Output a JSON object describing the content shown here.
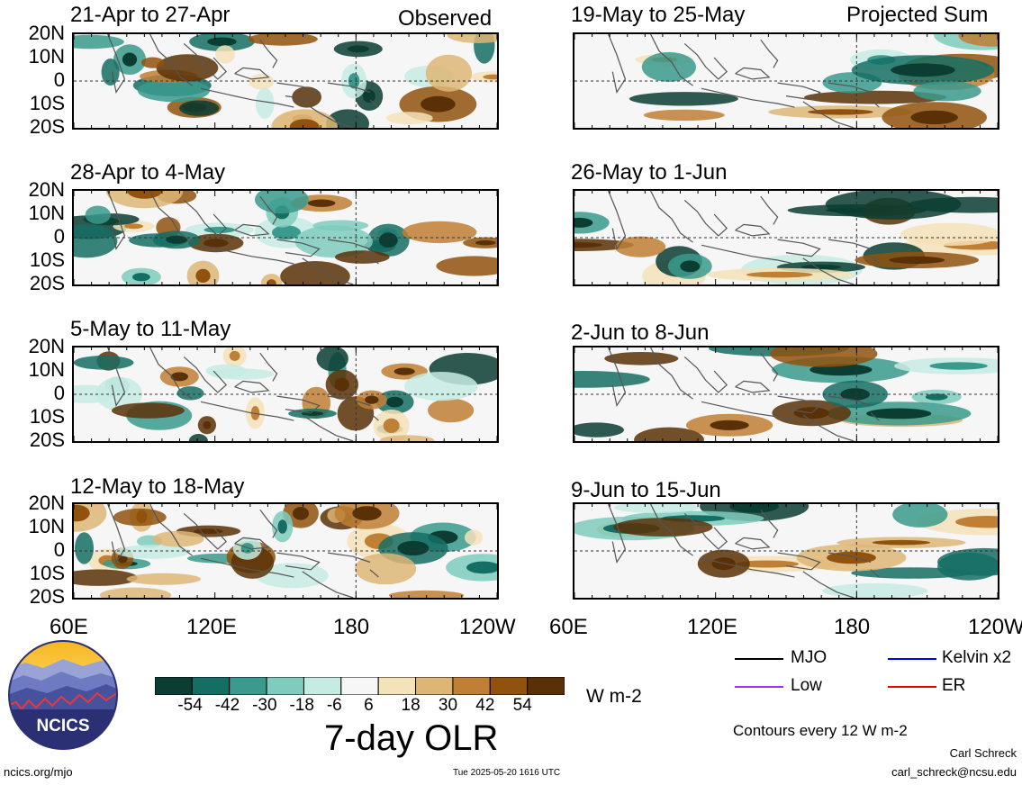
{
  "figure": {
    "title": "7-day OLR",
    "units": "W m-2",
    "contour_note": "Contours every 12 W m-2",
    "author": "Carl Schreck",
    "email": "carl_schreck@ncsu.edu",
    "url": "ncics.org/mjo",
    "timestamp": "Tue 2025-05-20 1616 UTC",
    "logo_text": "NCICS"
  },
  "columns": {
    "left_header": "Observed",
    "right_header": "Projected Sum"
  },
  "panels_observed": [
    {
      "title": "21-Apr to 27-Apr"
    },
    {
      "title": "28-Apr to 4-May"
    },
    {
      "title": "5-May to 11-May"
    },
    {
      "title": "12-May to 18-May"
    }
  ],
  "panels_projected": [
    {
      "title": "19-May to 25-May"
    },
    {
      "title": "26-May to 1-Jun"
    },
    {
      "title": "2-Jun to 8-Jun"
    },
    {
      "title": "9-Jun to 15-Jun"
    }
  ],
  "lat_ticks": [
    "20N",
    "10N",
    "0",
    "10S",
    "20S"
  ],
  "lon_ticks": [
    "60E",
    "120E",
    "180",
    "120W"
  ],
  "colorbar": {
    "ticks": [
      "-54",
      "-42",
      "-30",
      "-18",
      "-6",
      "6",
      "18",
      "30",
      "42",
      "54"
    ],
    "colors": [
      "#0b3d33",
      "#156e64",
      "#3a9a8d",
      "#7fcbbd",
      "#c6ebe3",
      "#f6f6f6",
      "#f4e2b8",
      "#ddb676",
      "#bf7f35",
      "#91520e",
      "#5a3107"
    ]
  },
  "legend": [
    {
      "label": "MJO",
      "color": "#000000"
    },
    {
      "label": "Kelvin x2",
      "color": "#0000ee"
    },
    {
      "label": "Low",
      "color": "#9b30ff"
    },
    {
      "label": "ER",
      "color": "#ee0000"
    }
  ]
}
